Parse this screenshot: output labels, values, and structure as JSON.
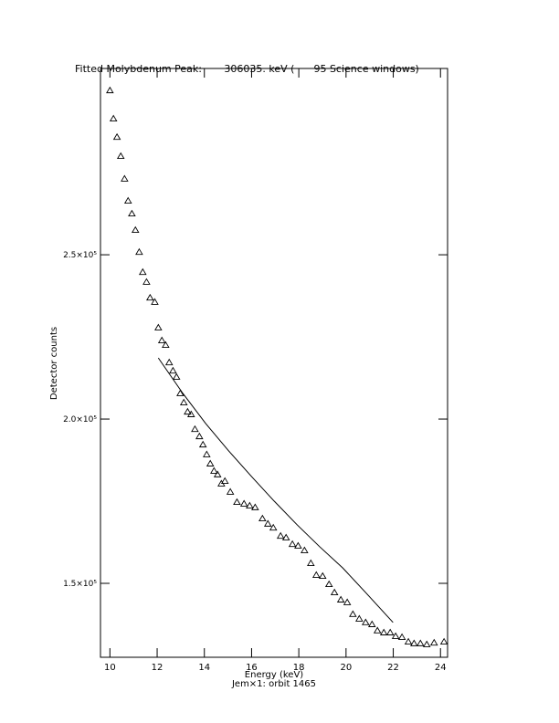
{
  "chart_data": {
    "type": "scatter",
    "title": "Fitted Molybdenum Peak:       306035. keV (      95 Science windows)",
    "x_label": "Energy (keV)",
    "y_label": "Detector counts",
    "subtitle": "Jem×1: orbit 1465",
    "xlim": [
      9.6,
      24.3
    ],
    "ylim": [
      127500,
      306700
    ],
    "xticks": [
      10,
      12,
      14,
      16,
      18,
      20,
      22,
      24
    ],
    "yticks": [
      {
        "value": 150000,
        "label": "1.5×10⁵"
      },
      {
        "value": 200000,
        "label": "2.0×10⁵"
      },
      {
        "value": 250000,
        "label": "2.5×10⁵"
      }
    ],
    "series": [
      {
        "name": "Data",
        "marker": "triangle",
        "color": "#000000",
        "x": [
          10.0,
          10.15,
          10.3,
          10.46,
          10.62,
          10.77,
          10.93,
          11.08,
          11.24,
          11.39,
          11.55,
          11.7,
          11.9,
          12.05,
          12.2,
          12.36,
          12.51,
          12.67,
          12.82,
          12.98,
          13.13,
          13.29,
          13.44,
          13.6,
          13.79,
          13.94,
          14.1,
          14.25,
          14.41,
          14.56,
          14.72,
          14.87,
          15.1,
          15.38,
          15.68,
          15.92,
          16.15,
          16.46,
          16.69,
          16.92,
          17.23,
          17.46,
          17.73,
          17.97,
          18.24,
          18.51,
          18.74,
          19.01,
          19.28,
          19.51,
          19.78,
          20.05,
          20.29,
          20.56,
          20.83,
          21.1,
          21.33,
          21.6,
          21.87,
          22.1,
          22.37,
          22.64,
          22.88,
          23.15,
          23.42,
          23.73,
          24.15
        ],
        "values": [
          300000,
          291400,
          285800,
          280000,
          273100,
          266400,
          262500,
          257500,
          250800,
          244700,
          241700,
          236900,
          235600,
          227800,
          223900,
          222500,
          217200,
          214700,
          212800,
          207800,
          205000,
          202200,
          201400,
          196900,
          194700,
          192200,
          189200,
          186400,
          184200,
          183100,
          180300,
          181100,
          177800,
          174700,
          174200,
          173600,
          173100,
          169700,
          168100,
          166900,
          164400,
          163900,
          161900,
          161400,
          160000,
          156100,
          152500,
          152200,
          149700,
          147200,
          145000,
          144200,
          140600,
          139200,
          138100,
          137500,
          135600,
          135000,
          135000,
          133900,
          133600,
          132200,
          131700,
          131700,
          131400,
          131900,
          132200
        ]
      },
      {
        "name": "Fit",
        "marker": "line",
        "color": "#000000",
        "x": [
          12.05,
          13.09,
          14.06,
          15.03,
          16.0,
          16.96,
          17.93,
          18.89,
          19.86,
          20.83,
          21.99
        ],
        "values": [
          218600,
          207800,
          198600,
          190300,
          182500,
          175000,
          167800,
          161100,
          154700,
          147200,
          138100
        ]
      }
    ]
  }
}
